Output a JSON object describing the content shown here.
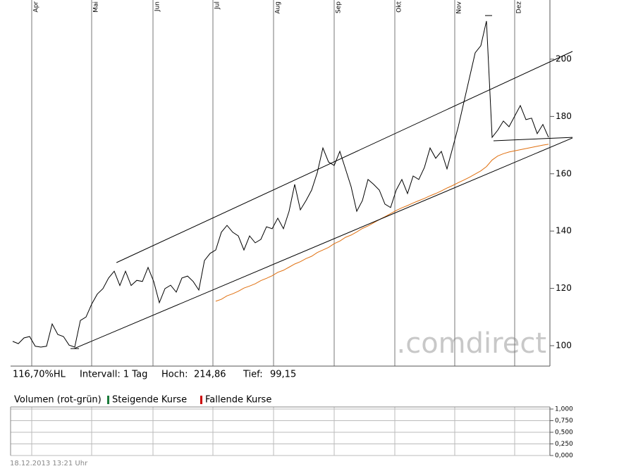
{
  "chart_data": {
    "type": "line",
    "xlim": [
      -0.375,
      95.25
    ],
    "xticks": [
      {
        "value": 3.375,
        "label": "Apr"
      },
      {
        "value": 14,
        "label": "Mai"
      },
      {
        "value": 24.875,
        "label": "Jun"
      },
      {
        "value": 35.5,
        "label": "Jul"
      },
      {
        "value": 46.25,
        "label": "Aug"
      },
      {
        "value": 57,
        "label": "Sep"
      },
      {
        "value": 67.75,
        "label": "Okt"
      },
      {
        "value": 78.375,
        "label": "Nov"
      },
      {
        "value": 89,
        "label": "Dez"
      }
    ],
    "ylim": [
      92.87,
      220.64
    ],
    "yticks": [
      100,
      120,
      140,
      160,
      180,
      200
    ],
    "series": [
      {
        "color": "#000000",
        "values": [
          101.5,
          100.7,
          102.7,
          103.2,
          99.8,
          99.5,
          99.8,
          107.6,
          103.9,
          103.2,
          100.2,
          99.5,
          108.8,
          110,
          114.5,
          118,
          119.9,
          123.6,
          126,
          121,
          126,
          121,
          122.8,
          122.4,
          127.3,
          122.4,
          115,
          119.9,
          121.1,
          118.7,
          123.6,
          124.3,
          122.4,
          119.4,
          129.7,
          132.2,
          133.4,
          139.6,
          142,
          139.6,
          138.3,
          133.4,
          138.3,
          135.9,
          137.1,
          141.5,
          140.8,
          144.5,
          140.8,
          146.9,
          156.3,
          147.4,
          150.6,
          154.3,
          160.4,
          169,
          164.1,
          162.9,
          167.8,
          161.7,
          155.5,
          146.9,
          150.6,
          158,
          156.3,
          154.3,
          149.4,
          148.2,
          154.3,
          158,
          153.1,
          159.2,
          158,
          162.2,
          169,
          165.4,
          167.8,
          161.7,
          169,
          176.4,
          185,
          193.6,
          202.2,
          204.7,
          213.3,
          172.7,
          175.2,
          178.4,
          176.4,
          180.1,
          183.8,
          178.9,
          179.4,
          174,
          177.2,
          172.7
        ]
      },
      {
        "color": "#e07010",
        "values": [
          null,
          null,
          null,
          null,
          null,
          null,
          null,
          null,
          null,
          null,
          null,
          null,
          null,
          null,
          null,
          null,
          null,
          null,
          null,
          null,
          null,
          null,
          null,
          null,
          null,
          null,
          null,
          null,
          null,
          null,
          null,
          null,
          null,
          null,
          null,
          null,
          115.5,
          116.2,
          117.4,
          118.1,
          119.0,
          120.1,
          120.8,
          121.6,
          122.7,
          123.5,
          124.4,
          125.6,
          126.3,
          127.4,
          128.5,
          129.3,
          130.4,
          131.2,
          132.5,
          133.4,
          134.3,
          135.6,
          136.5,
          137.8,
          138.6,
          139.7,
          140.9,
          141.8,
          142.9,
          144.0,
          145.0,
          146.1,
          147.2,
          148.1,
          148.9,
          149.8,
          150.6,
          151.4,
          152.3,
          153.1,
          154.0,
          155.0,
          155.9,
          156.9,
          157.8,
          158.8,
          159.9,
          161.0,
          162.5,
          164.8,
          166.2,
          167.0,
          167.6,
          168.0,
          168.4,
          168.8,
          169.2,
          169.6,
          170.0,
          170.3
        ]
      }
    ],
    "trend_lines": [
      {
        "x": [
          10.9,
          99.25
        ],
        "values": [
          99,
          172.5
        ]
      },
      {
        "x": [
          18.4,
          99.25
        ],
        "values": [
          129,
          202.7
        ]
      },
      {
        "x": [
          85.25,
          99.25
        ],
        "values": [
          171.5,
          172.7
        ]
      },
      {
        "x": [
          83.75,
          85
        ],
        "values": [
          215.2,
          215.2
        ]
      },
      {
        "x": [
          10.25,
          11.75
        ],
        "values": [
          99,
          99
        ]
      }
    ],
    "watermark": ".comdirect"
  },
  "info": {
    "range": "116,70%HL",
    "interval": "Intervall: 1 Tag",
    "high_label": "Hoch:",
    "high": "214,86",
    "low_label": "Tief:",
    "low": "99,15"
  },
  "volume_panel": {
    "title": "Volumen (rot-grün)",
    "legend": [
      {
        "name": "Steigende Kurse",
        "color": "#1a7a3a"
      },
      {
        "name": "Fallende Kurse",
        "color": "#cc0000"
      }
    ],
    "ylim": [
      0,
      1
    ],
    "yticks": [
      {
        "value": 1,
        "label": "1,000"
      },
      {
        "value": 0.75,
        "label": "0,750"
      },
      {
        "value": 0.5,
        "label": "0,500"
      },
      {
        "value": 0.25,
        "label": "0,250"
      },
      {
        "value": 0,
        "label": "0,000"
      }
    ]
  },
  "timestamp": "18.12.2013 13:21 Uhr"
}
